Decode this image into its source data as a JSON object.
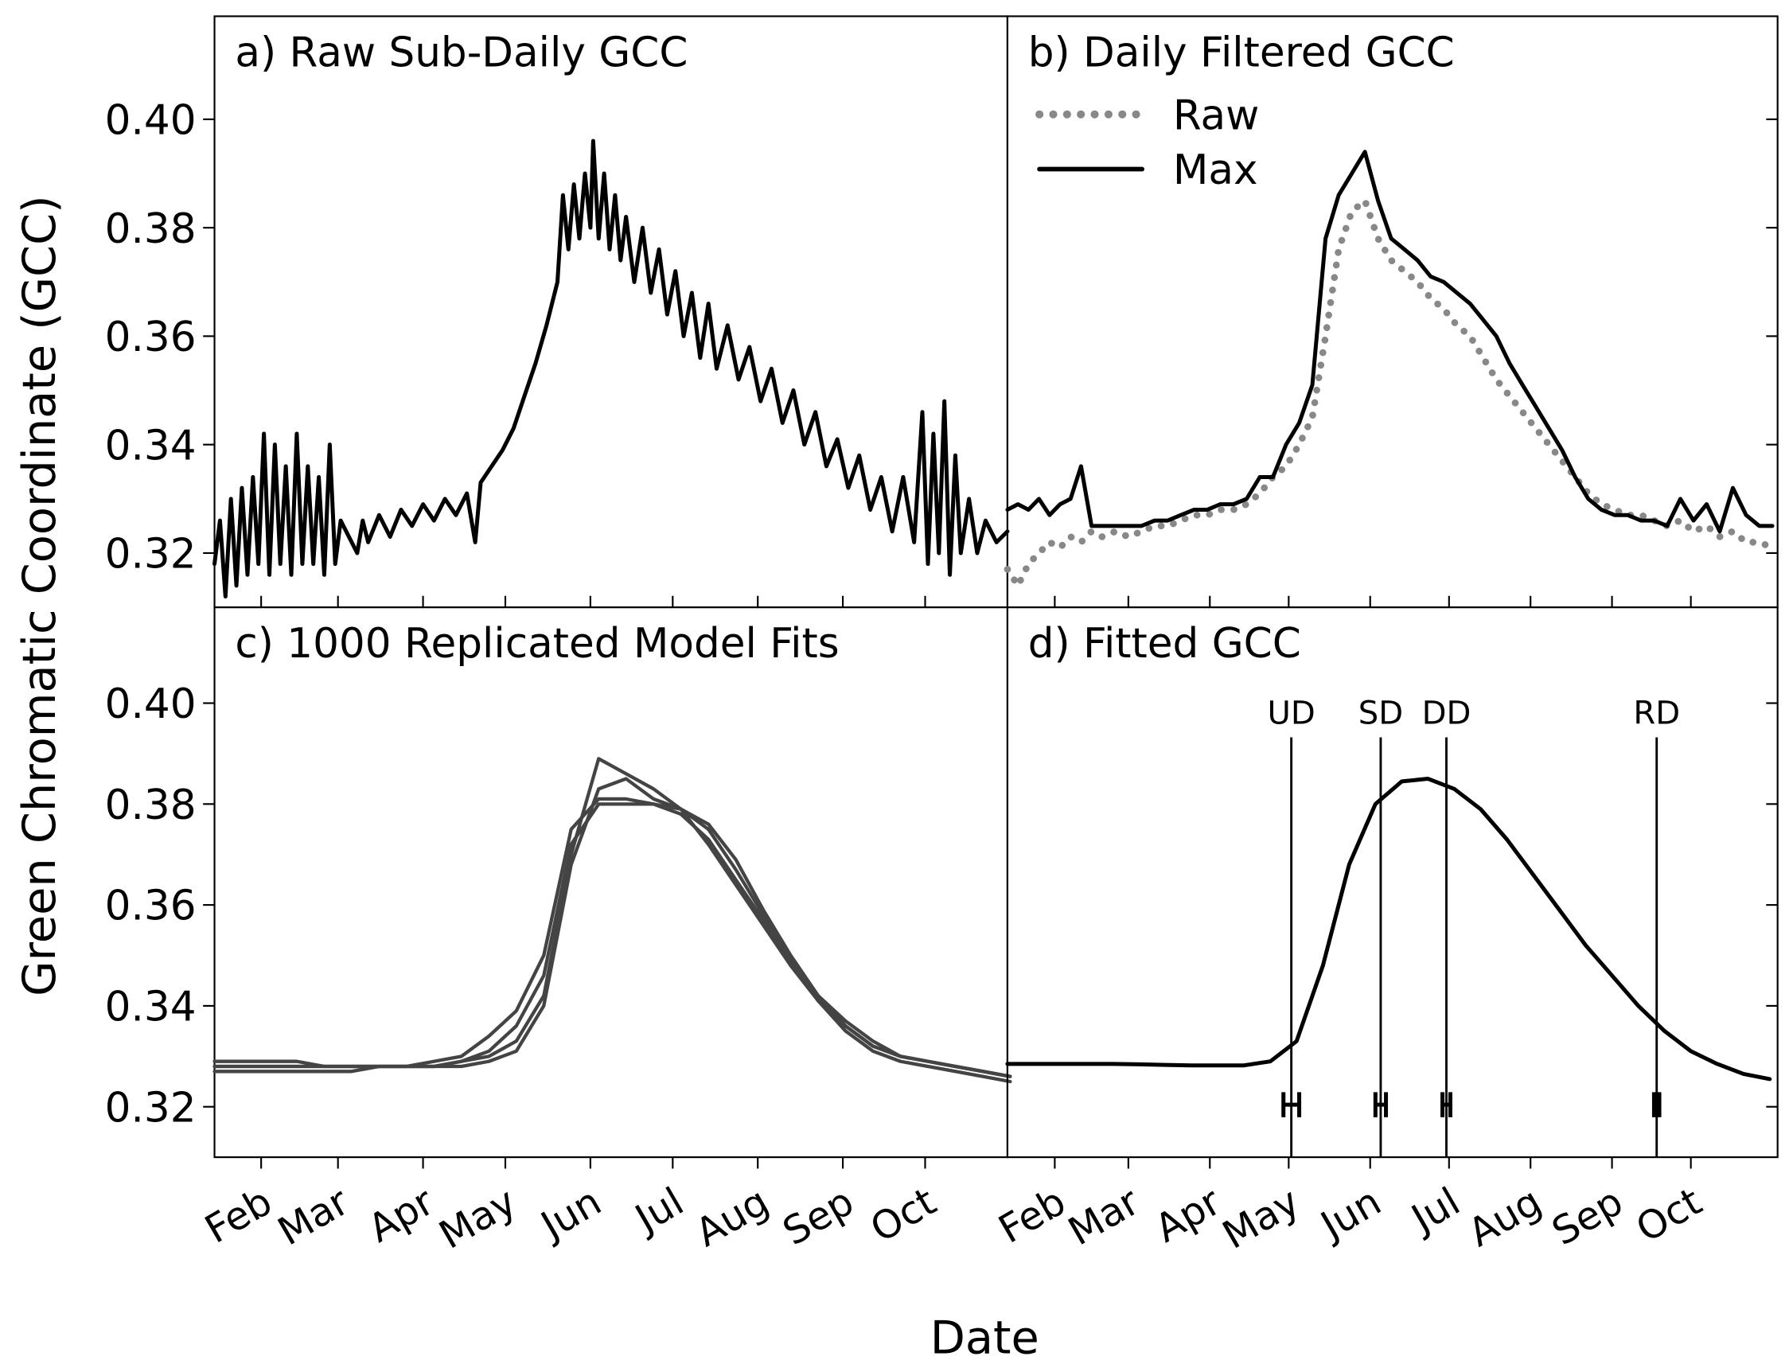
{
  "ylabel": "Green Chromatic Coordinate (GCC)",
  "xlabel": "Date",
  "chart_data": [
    {
      "type": "line",
      "title": "a)  Raw Sub-Daily GCC",
      "x": [
        15,
        17,
        19,
        21,
        23,
        25,
        27,
        29,
        31,
        33,
        35,
        37,
        39,
        41,
        43,
        45,
        47,
        49,
        51,
        53,
        55,
        57,
        59,
        61,
        67,
        69,
        71,
        75,
        79,
        83,
        87,
        91,
        95,
        99,
        103,
        107,
        110,
        112,
        116,
        120,
        124,
        128,
        132,
        136,
        140,
        142,
        144,
        146,
        148,
        150,
        152,
        153,
        155,
        157,
        159,
        161,
        163,
        165,
        168,
        171,
        174,
        177,
        180,
        183,
        186,
        189,
        192,
        195,
        198,
        202,
        206,
        210,
        214,
        218,
        222,
        226,
        230,
        234,
        238,
        242,
        246,
        250,
        254,
        258,
        262,
        266,
        270,
        273,
        275,
        277,
        279,
        281,
        283,
        285,
        287,
        290,
        293,
        296,
        300,
        304
      ],
      "series": [
        {
          "color": "#000000",
          "values": [
            0.318,
            0.326,
            0.312,
            0.33,
            0.314,
            0.332,
            0.316,
            0.334,
            0.318,
            0.342,
            0.316,
            0.34,
            0.318,
            0.336,
            0.316,
            0.342,
            0.318,
            0.336,
            0.318,
            0.334,
            0.316,
            0.34,
            0.318,
            0.326,
            0.32,
            0.326,
            0.322,
            0.327,
            0.323,
            0.328,
            0.325,
            0.329,
            0.326,
            0.33,
            0.327,
            0.331,
            0.322,
            0.333,
            0.336,
            0.339,
            0.343,
            0.349,
            0.355,
            0.362,
            0.37,
            0.386,
            0.376,
            0.388,
            0.378,
            0.39,
            0.38,
            0.396,
            0.378,
            0.39,
            0.376,
            0.386,
            0.374,
            0.382,
            0.37,
            0.38,
            0.368,
            0.376,
            0.364,
            0.372,
            0.36,
            0.368,
            0.356,
            0.366,
            0.354,
            0.362,
            0.352,
            0.358,
            0.348,
            0.354,
            0.344,
            0.35,
            0.34,
            0.346,
            0.336,
            0.341,
            0.332,
            0.338,
            0.328,
            0.334,
            0.324,
            0.334,
            0.322,
            0.346,
            0.318,
            0.342,
            0.32,
            0.348,
            0.316,
            0.338,
            0.32,
            0.33,
            0.32,
            0.326,
            0.322,
            0.324
          ]
        }
      ],
      "xlim": [
        15,
        304
      ],
      "ylim": [
        0.31,
        0.419
      ],
      "yticks": [
        0.32,
        0.34,
        0.36,
        0.38,
        {
          "value": 0.4,
          "label": "0.40"
        }
      ]
    },
    {
      "type": "line",
      "title": "b) Daily Filtered GCC",
      "legend": "upper left",
      "x": [
        14,
        18,
        22,
        26,
        30,
        34,
        38,
        42,
        46,
        50,
        55,
        60,
        65,
        70,
        75,
        80,
        85,
        90,
        95,
        100,
        105,
        110,
        115,
        120,
        125,
        130,
        135,
        140,
        145,
        150,
        155,
        160,
        165,
        170,
        175,
        180,
        185,
        190,
        195,
        200,
        205,
        210,
        215,
        220,
        225,
        230,
        235,
        240,
        245,
        250,
        255,
        260,
        265,
        270,
        275,
        280,
        285,
        290,
        295,
        300,
        305
      ],
      "series": [
        {
          "name": "Raw",
          "color": "#888888",
          "style": "dotted",
          "values": [
            0.317,
            0.314,
            0.318,
            0.32,
            0.322,
            0.321,
            0.323,
            0.322,
            0.324,
            0.323,
            0.324,
            0.323,
            0.324,
            0.325,
            0.325,
            0.326,
            0.327,
            0.327,
            0.328,
            0.328,
            0.329,
            0.331,
            0.334,
            0.336,
            0.34,
            0.345,
            0.36,
            0.376,
            0.383,
            0.385,
            0.378,
            0.374,
            0.372,
            0.37,
            0.367,
            0.365,
            0.362,
            0.36,
            0.356,
            0.352,
            0.349,
            0.346,
            0.343,
            0.34,
            0.337,
            0.334,
            0.331,
            0.329,
            0.328,
            0.327,
            0.327,
            0.326,
            0.325,
            0.326,
            0.324,
            0.325,
            0.323,
            0.324,
            0.322,
            0.322,
            0.321
          ]
        },
        {
          "name": "Max",
          "color": "#000000",
          "style": "solid",
          "values": [
            0.328,
            0.329,
            0.328,
            0.33,
            0.327,
            0.329,
            0.33,
            0.336,
            0.325,
            0.325,
            0.325,
            0.325,
            0.325,
            0.326,
            0.326,
            0.327,
            0.328,
            0.328,
            0.329,
            0.329,
            0.33,
            0.334,
            0.334,
            0.34,
            0.344,
            0.351,
            0.378,
            0.386,
            0.39,
            0.394,
            0.385,
            0.378,
            0.376,
            0.374,
            0.371,
            0.37,
            0.368,
            0.366,
            0.363,
            0.36,
            0.355,
            0.351,
            0.347,
            0.343,
            0.339,
            0.334,
            0.33,
            0.328,
            0.327,
            0.327,
            0.326,
            0.326,
            0.325,
            0.33,
            0.326,
            0.329,
            0.324,
            0.332,
            0.327,
            0.325,
            0.325
          ]
        }
      ],
      "xlim": [
        14,
        307
      ],
      "ylim": [
        0.31,
        0.419
      ]
    },
    {
      "type": "line",
      "title": "c)  1000 Replicated Model Fits",
      "x": [
        15,
        25,
        35,
        45,
        55,
        65,
        75,
        85,
        95,
        105,
        115,
        125,
        135,
        145,
        155,
        165,
        175,
        185,
        195,
        205,
        215,
        225,
        235,
        245,
        255,
        265,
        275,
        285,
        295,
        305
      ],
      "series": [
        {
          "color": "#444444",
          "values": [
            0.329,
            0.329,
            0.329,
            0.329,
            0.328,
            0.328,
            0.328,
            0.328,
            0.328,
            0.329,
            0.33,
            0.333,
            0.342,
            0.37,
            0.389,
            0.386,
            0.383,
            0.379,
            0.372,
            0.364,
            0.356,
            0.348,
            0.341,
            0.336,
            0.332,
            0.33,
            0.329,
            0.328,
            0.327,
            0.326
          ]
        },
        {
          "color": "#444444",
          "values": [
            0.328,
            0.328,
            0.328,
            0.328,
            0.328,
            0.328,
            0.328,
            0.328,
            0.328,
            0.329,
            0.331,
            0.336,
            0.346,
            0.372,
            0.38,
            0.38,
            0.38,
            0.378,
            0.373,
            0.365,
            0.357,
            0.349,
            0.342,
            0.337,
            0.333,
            0.33,
            0.329,
            0.328,
            0.327,
            0.326
          ]
        },
        {
          "color": "#444444",
          "values": [
            0.327,
            0.327,
            0.327,
            0.327,
            0.327,
            0.327,
            0.328,
            0.328,
            0.328,
            0.328,
            0.329,
            0.331,
            0.34,
            0.368,
            0.383,
            0.385,
            0.381,
            0.379,
            0.375,
            0.367,
            0.358,
            0.349,
            0.341,
            0.335,
            0.331,
            0.329,
            0.328,
            0.327,
            0.326,
            0.325
          ]
        },
        {
          "color": "#444444",
          "values": [
            0.328,
            0.328,
            0.328,
            0.328,
            0.328,
            0.328,
            0.328,
            0.328,
            0.329,
            0.33,
            0.334,
            0.339,
            0.35,
            0.375,
            0.381,
            0.381,
            0.38,
            0.379,
            0.376,
            0.369,
            0.359,
            0.35,
            0.342,
            0.336,
            0.332,
            0.33,
            0.329,
            0.328,
            0.327,
            0.326
          ]
        }
      ],
      "xlim": [
        15,
        304
      ],
      "ylim": [
        0.31,
        0.419
      ],
      "yticks": [
        0.32,
        0.34,
        0.36,
        0.38,
        {
          "value": 0.4,
          "label": "0.40"
        }
      ],
      "xticks": [
        {
          "value": 32,
          "label": "Feb"
        },
        {
          "value": 60,
          "label": "Mar"
        },
        {
          "value": 91,
          "label": "Apr"
        },
        {
          "value": 121,
          "label": "May"
        },
        {
          "value": 152,
          "label": "Jun"
        },
        {
          "value": 182,
          "label": "Jul"
        },
        {
          "value": 213,
          "label": "Aug"
        },
        {
          "value": 244,
          "label": "Sep"
        },
        {
          "value": 274,
          "label": "Oct"
        }
      ]
    },
    {
      "type": "line",
      "title": "d) Fitted GCC",
      "x": [
        14,
        24,
        34,
        44,
        54,
        64,
        74,
        84,
        94,
        104,
        114,
        124,
        134,
        144,
        154,
        164,
        174,
        184,
        194,
        204,
        214,
        224,
        234,
        244,
        254,
        264,
        274,
        284,
        294,
        304
      ],
      "series": [
        {
          "color": "#000000",
          "values": [
            0.3285,
            0.3285,
            0.3285,
            0.3285,
            0.3285,
            0.3284,
            0.3283,
            0.3282,
            0.3282,
            0.3282,
            0.329,
            0.333,
            0.348,
            0.368,
            0.38,
            0.3845,
            0.385,
            0.383,
            0.379,
            0.373,
            0.366,
            0.359,
            0.352,
            0.346,
            0.34,
            0.335,
            0.331,
            0.3285,
            0.3265,
            0.3255
          ]
        }
      ],
      "annotations": [
        {
          "label": "UD",
          "x": 122,
          "x_err": 3
        },
        {
          "label": "SD",
          "x": 156,
          "x_err": 2
        },
        {
          "label": "DD",
          "x": 181,
          "x_err": 1.5
        },
        {
          "label": "RD",
          "x": 261,
          "x_err": 1
        }
      ],
      "xlim": [
        14,
        307
      ],
      "ylim": [
        0.31,
        0.419
      ],
      "xticks": [
        {
          "value": 32,
          "label": "Feb"
        },
        {
          "value": 60,
          "label": "Mar"
        },
        {
          "value": 91,
          "label": "Apr"
        },
        {
          "value": 121,
          "label": "May"
        },
        {
          "value": 152,
          "label": "Jun"
        },
        {
          "value": 182,
          "label": "Jul"
        },
        {
          "value": 213,
          "label": "Aug"
        },
        {
          "value": 244,
          "label": "Sep"
        },
        {
          "value": 274,
          "label": "Oct"
        }
      ]
    }
  ]
}
